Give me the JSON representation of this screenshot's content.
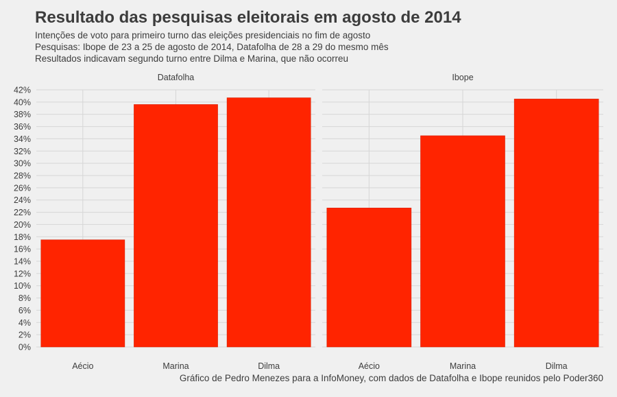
{
  "title": "Resultado das pesquisas eleitorais em agosto de 2014",
  "subtitle_lines": [
    "Intenções de voto para primeiro turno das eleições presidenciais no fim de agosto",
    "Pesquisas: Ibope de 23 a 25 de agosto de 2014, Datafolha de 28 a 29 do mesmo mês",
    "Resultados indicavam segundo turno entre Dilma e Marina, que não ocorreu"
  ],
  "caption": "Gráfico de Pedro Menezes para a InfoMoney, com dados de Datafolha e Ibope reunidos pelo Poder360",
  "colors": {
    "bar": "#ff2400",
    "bar_stroke": "#d81e00",
    "grid": "#d6d6d6",
    "text": "#3c3c3c"
  },
  "chart_data": [
    {
      "type": "bar",
      "panel": "Datafolha",
      "categories": [
        "Aécio",
        "Marina",
        "Dilma"
      ],
      "values": [
        17.5,
        39.6,
        40.7
      ],
      "ylim": [
        0,
        42
      ],
      "yticks": [
        "0%",
        "2%",
        "4%",
        "6%",
        "8%",
        "10%",
        "12%",
        "14%",
        "16%",
        "18%",
        "20%",
        "22%",
        "24%",
        "26%",
        "28%",
        "30%",
        "32%",
        "34%",
        "36%",
        "38%",
        "40%",
        "42%"
      ],
      "xlabel": "",
      "ylabel": ""
    },
    {
      "type": "bar",
      "panel": "Ibope",
      "categories": [
        "Aécio",
        "Marina",
        "Dilma"
      ],
      "values": [
        22.7,
        34.5,
        40.5
      ],
      "ylim": [
        0,
        42
      ],
      "xlabel": "",
      "ylabel": ""
    }
  ]
}
